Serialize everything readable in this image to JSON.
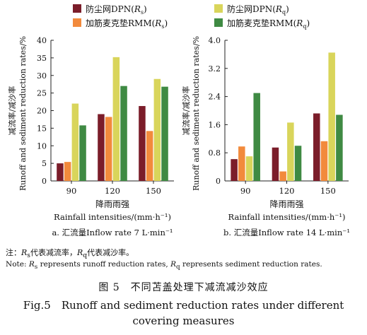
{
  "legend": [
    {
      "key": "dpn_rs",
      "label": "防尘网DPN",
      "sub": "s",
      "color": "#7b1d2a"
    },
    {
      "key": "rmm_rs",
      "label": "加筋麦克垫RMM",
      "sub": "s",
      "color": "#f28a3c"
    },
    {
      "key": "dpn_rq",
      "label": "防尘网DPN",
      "sub": "q",
      "color": "#d9d55b"
    },
    {
      "key": "rmm_rq",
      "label": "加筋麦克垫RMM",
      "sub": "q",
      "color": "#3f8a43"
    }
  ],
  "chart_data": [
    {
      "type": "bar",
      "panel": "a",
      "categories": [
        "90",
        "120",
        "150"
      ],
      "ylim": [
        0,
        40
      ],
      "yticks": [
        "0",
        "5",
        "10",
        "15",
        "20",
        "25",
        "30",
        "35",
        "40"
      ],
      "ylabel_cn": "减流率/减沙率",
      "ylabel_en": "Runoff and sediment reduction rates/%",
      "xlabel_cn": "降雨雨强",
      "xlabel_en": "Rainfall intensities/(mm·h⁻¹)",
      "caption": "a. 汇流量Inflow rate 7 L·min⁻¹",
      "series": [
        {
          "name": "防尘网DPN (Rs)",
          "color": "#7b1d2a",
          "values": [
            5.0,
            19.0,
            21.3
          ]
        },
        {
          "name": "加筋麦克垫RMM (Rs)",
          "color": "#f28a3c",
          "values": [
            5.4,
            18.2,
            14.2
          ]
        },
        {
          "name": "防尘网DPN (Rq)",
          "color": "#d9d55b",
          "values": [
            22.0,
            35.2,
            29.0
          ]
        },
        {
          "name": "加筋麦克垫RMM (Rq)",
          "color": "#3f8a43",
          "values": [
            15.8,
            27.0,
            26.8
          ]
        }
      ]
    },
    {
      "type": "bar",
      "panel": "b",
      "categories": [
        "90",
        "120",
        "150"
      ],
      "ylim": [
        0,
        4.0
      ],
      "yticks": [
        "0",
        "0.8",
        "1.6",
        "2.4",
        "3.2",
        "4.0"
      ],
      "ylabel_cn": "减流率/减沙率",
      "ylabel_en": "Runoff and sediment reduction rates/%",
      "xlabel_cn": "降雨雨强",
      "xlabel_en": "Rainfall intensities/(mm·h⁻¹)",
      "caption": "b. 汇流量Inflow rate 14 L·min⁻¹",
      "series": [
        {
          "name": "防尘网DPN (Rs)",
          "color": "#7b1d2a",
          "values": [
            0.62,
            0.95,
            1.92
          ]
        },
        {
          "name": "加筋麦克垫RMM (Rs)",
          "color": "#f28a3c",
          "values": [
            0.98,
            0.27,
            1.13
          ]
        },
        {
          "name": "防尘网DPN (Rq)",
          "color": "#d9d55b",
          "values": [
            0.7,
            1.66,
            3.65
          ]
        },
        {
          "name": "加筋麦克垫RMM (Rq)",
          "color": "#3f8a43",
          "values": [
            2.5,
            1.0,
            1.88
          ]
        }
      ]
    }
  ],
  "note_cn_prefix": "注：",
  "note_cn_rs": "代表减流率，",
  "note_cn_rq": "代表减沙率。",
  "note_en_prefix": "Note: ",
  "note_en_rs": " represents runoff reduction rates, ",
  "note_en_rq": " represents sediment reduction rates.",
  "symbol_r": "R",
  "sub_s": "s",
  "sub_q": "q",
  "fig_title_cn": "图 5　不同苫盖处理下减流减沙效应",
  "fig_title_en_1": "Fig.5　Runoff and sediment reduction rates under different",
  "fig_title_en_2": "covering measures"
}
